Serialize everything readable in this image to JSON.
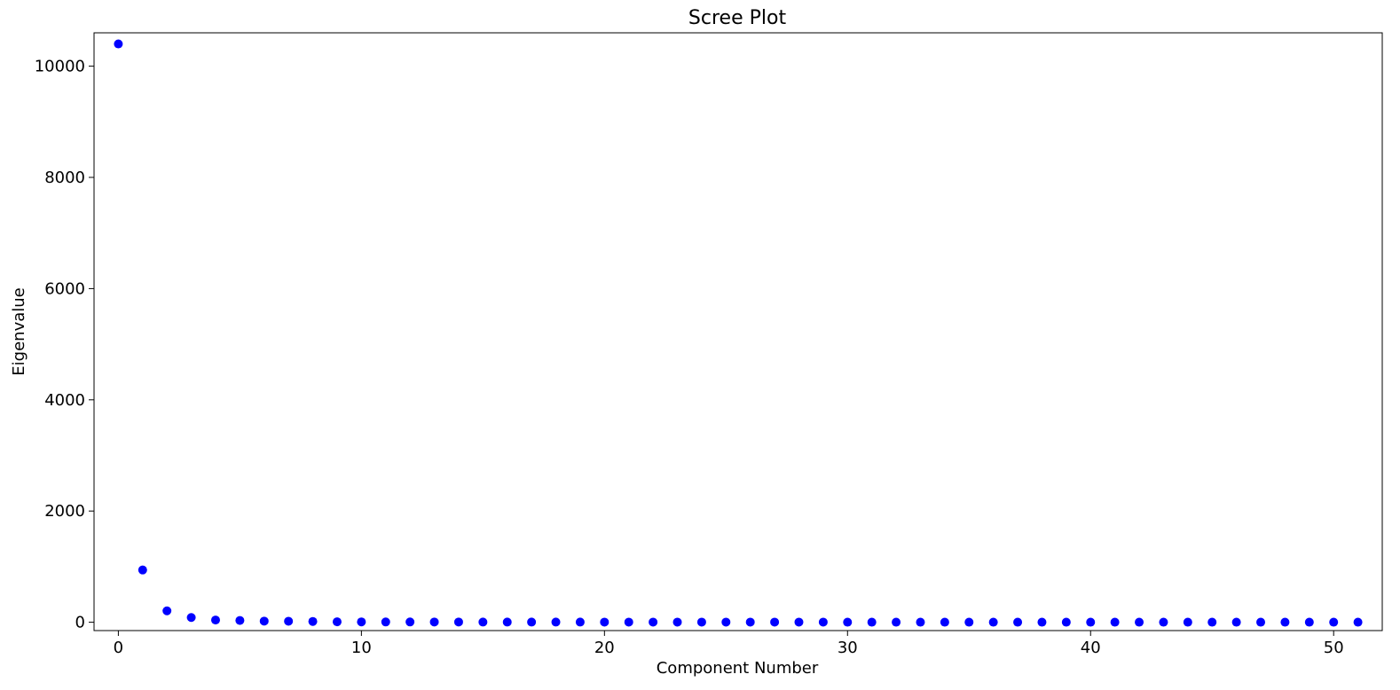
{
  "chart_data": {
    "type": "scatter",
    "title": "Scree Plot",
    "xlabel": "Component Number",
    "ylabel": "Eigenvalue",
    "xlim": [
      -1,
      52
    ],
    "ylim": [
      -150,
      10600
    ],
    "xticks": [
      0,
      10,
      20,
      30,
      40,
      50
    ],
    "yticks": [
      0,
      2000,
      4000,
      6000,
      8000,
      10000
    ],
    "grid": false,
    "marker_color": "#0000ff",
    "series": [
      {
        "x": [
          0,
          1,
          2,
          3,
          4,
          5,
          6,
          7,
          8,
          9,
          10,
          11,
          12,
          13,
          14,
          15,
          16,
          17,
          18,
          19,
          20,
          21,
          22,
          23,
          24,
          25,
          26,
          27,
          28,
          29,
          30,
          31,
          32,
          33,
          34,
          35,
          36,
          37,
          38,
          39,
          40,
          41,
          42,
          43,
          44,
          45,
          46,
          47,
          48,
          49,
          50,
          51
        ],
        "values": [
          10400,
          940,
          205,
          85,
          40,
          32,
          20,
          18,
          14,
          8,
          6,
          5,
          5,
          4,
          4,
          3,
          3,
          3,
          3,
          3,
          2,
          2,
          2,
          2,
          2,
          2,
          2,
          2,
          2,
          2,
          1,
          1,
          1,
          1,
          1,
          1,
          1,
          1,
          1,
          1,
          1,
          1,
          1,
          1,
          1,
          1,
          1,
          1,
          1,
          1,
          1,
          1
        ]
      }
    ]
  }
}
